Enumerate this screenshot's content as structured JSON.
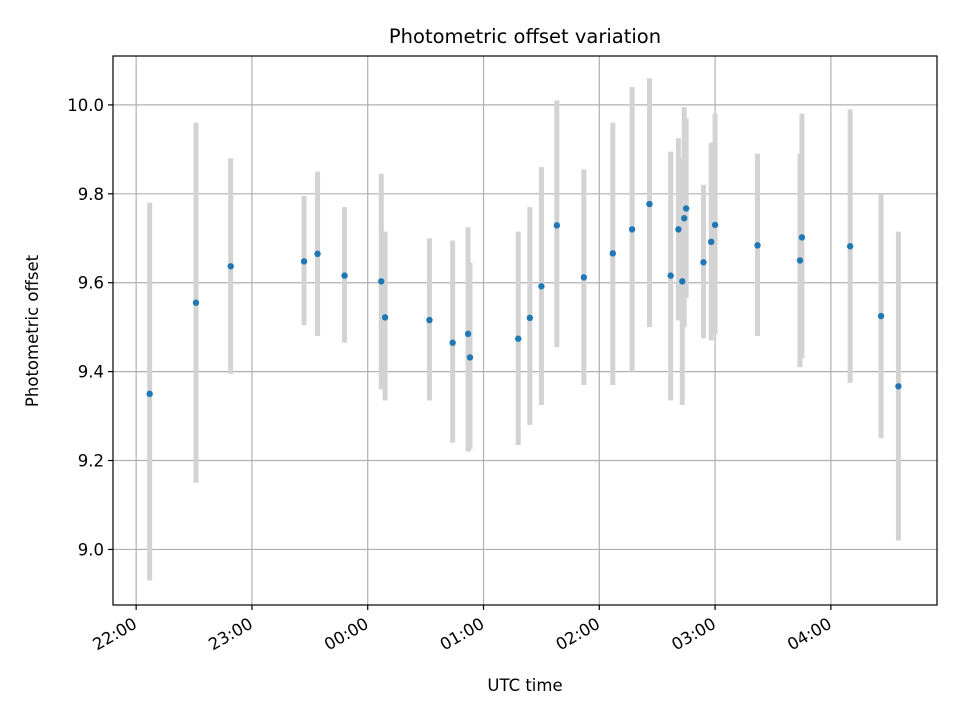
{
  "chart_data": {
    "type": "scatter",
    "title": "Photometric offset variation",
    "xlabel": "UTC time",
    "ylabel": "Photometric offset",
    "grid": true,
    "colors": {
      "points": "#1f77b4",
      "errorbars": "#d3d3d3",
      "grid": "#b0b0b0"
    },
    "x_ticks": [
      "22:00",
      "23:00",
      "00:00",
      "01:00",
      "02:00",
      "03:00",
      "04:00"
    ],
    "y_ticks": [
      "9.0",
      "9.2",
      "9.4",
      "9.6",
      "9.8",
      "10.0"
    ],
    "xlim": [
      "21:48",
      "04:55"
    ],
    "ylim": [
      8.875,
      10.11
    ],
    "points": [
      {
        "x": "22:07",
        "y": 9.35,
        "ylo": 8.93,
        "yhi": 9.78
      },
      {
        "x": "22:31",
        "y": 9.555,
        "ylo": 9.15,
        "yhi": 9.96
      },
      {
        "x": "22:49",
        "y": 9.637,
        "ylo": 9.395,
        "yhi": 9.88
      },
      {
        "x": "23:27",
        "y": 9.648,
        "ylo": 9.505,
        "yhi": 9.795
      },
      {
        "x": "23:34",
        "y": 9.665,
        "ylo": 9.48,
        "yhi": 9.85
      },
      {
        "x": "23:48",
        "y": 9.616,
        "ylo": 9.465,
        "yhi": 9.77
      },
      {
        "x": "00:07",
        "y": 9.603,
        "ylo": 9.36,
        "yhi": 9.845
      },
      {
        "x": "00:09",
        "y": 9.522,
        "ylo": 9.335,
        "yhi": 9.715
      },
      {
        "x": "00:32",
        "y": 9.516,
        "ylo": 9.335,
        "yhi": 9.7
      },
      {
        "x": "00:44",
        "y": 9.465,
        "ylo": 9.24,
        "yhi": 9.695
      },
      {
        "x": "00:52",
        "y": 9.485,
        "ylo": 9.22,
        "yhi": 9.725
      },
      {
        "x": "00:53",
        "y": 9.432,
        "ylo": 9.225,
        "yhi": 9.645
      },
      {
        "x": "01:18",
        "y": 9.474,
        "ylo": 9.235,
        "yhi": 9.715
      },
      {
        "x": "01:24",
        "y": 9.521,
        "ylo": 9.28,
        "yhi": 9.77
      },
      {
        "x": "01:30",
        "y": 9.592,
        "ylo": 9.325,
        "yhi": 9.86
      },
      {
        "x": "01:38",
        "y": 9.729,
        "ylo": 9.455,
        "yhi": 10.01
      },
      {
        "x": "01:52",
        "y": 9.612,
        "ylo": 9.37,
        "yhi": 9.855
      },
      {
        "x": "02:07",
        "y": 9.666,
        "ylo": 9.37,
        "yhi": 9.96
      },
      {
        "x": "02:17",
        "y": 9.72,
        "ylo": 9.4,
        "yhi": 10.04
      },
      {
        "x": "02:26",
        "y": 9.777,
        "ylo": 9.5,
        "yhi": 10.06
      },
      {
        "x": "02:37",
        "y": 9.616,
        "ylo": 9.335,
        "yhi": 9.895
      },
      {
        "x": "02:41",
        "y": 9.72,
        "ylo": 9.515,
        "yhi": 9.925
      },
      {
        "x": "02:43",
        "y": 9.603,
        "ylo": 9.325,
        "yhi": 9.88
      },
      {
        "x": "02:44",
        "y": 9.745,
        "ylo": 9.5,
        "yhi": 9.995
      },
      {
        "x": "02:45",
        "y": 9.767,
        "ylo": 9.565,
        "yhi": 9.97
      },
      {
        "x": "02:54",
        "y": 9.646,
        "ylo": 9.475,
        "yhi": 9.82
      },
      {
        "x": "02:58",
        "y": 9.692,
        "ylo": 9.47,
        "yhi": 9.915
      },
      {
        "x": "03:00",
        "y": 9.73,
        "ylo": 9.485,
        "yhi": 9.98
      },
      {
        "x": "03:22",
        "y": 9.684,
        "ylo": 9.48,
        "yhi": 9.89
      },
      {
        "x": "03:44",
        "y": 9.65,
        "ylo": 9.41,
        "yhi": 9.89
      },
      {
        "x": "03:45",
        "y": 9.702,
        "ylo": 9.43,
        "yhi": 9.98
      },
      {
        "x": "04:10",
        "y": 9.682,
        "ylo": 9.375,
        "yhi": 9.99
      },
      {
        "x": "04:26",
        "y": 9.525,
        "ylo": 9.25,
        "yhi": 9.8
      },
      {
        "x": "04:35",
        "y": 9.367,
        "ylo": 9.02,
        "yhi": 9.715
      }
    ]
  }
}
